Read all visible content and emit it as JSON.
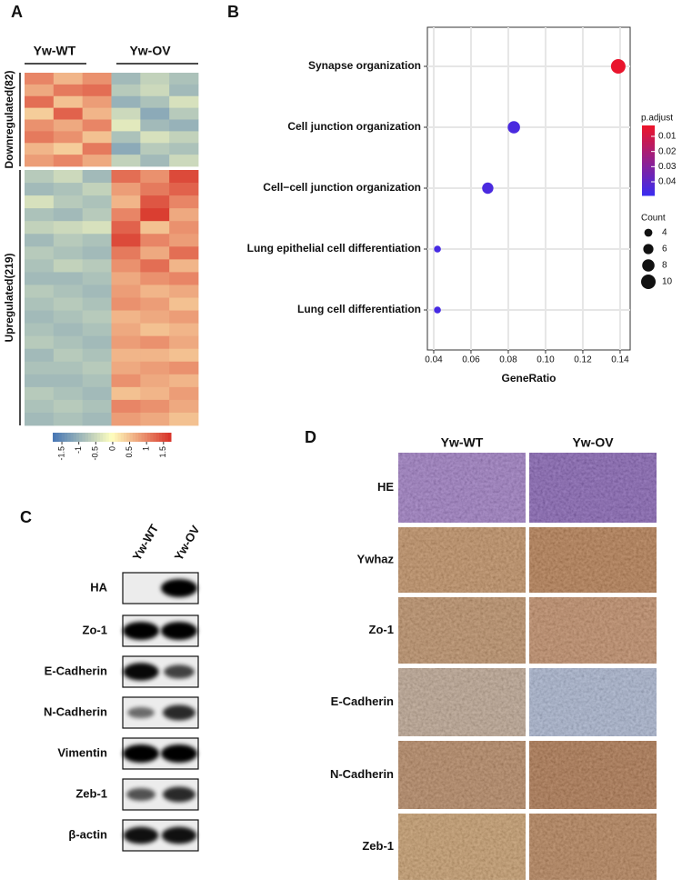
{
  "panels": [
    "A",
    "B",
    "C",
    "D"
  ],
  "heatmap": {
    "columns": [
      "Yw-WT",
      "Yw-OV"
    ],
    "row_groups": [
      "Downregulated(82)",
      "Upregulated(219)"
    ],
    "down": [
      [
        1.0,
        0.6,
        0.9,
        -0.9,
        -0.6,
        -0.8
      ],
      [
        0.7,
        1.1,
        1.2,
        -0.7,
        -0.5,
        -0.9
      ],
      [
        1.2,
        0.5,
        0.8,
        -1.0,
        -0.8,
        -0.4
      ],
      [
        0.4,
        1.3,
        0.6,
        -0.5,
        -1.1,
        -0.7
      ],
      [
        0.9,
        0.7,
        1.0,
        -0.3,
        -0.9,
        -1.0
      ],
      [
        1.1,
        0.9,
        0.5,
        -0.8,
        -0.4,
        -0.6
      ],
      [
        0.6,
        0.4,
        1.1,
        -1.1,
        -0.7,
        -0.8
      ],
      [
        0.8,
        1.0,
        0.7,
        -0.6,
        -0.9,
        -0.5
      ]
    ],
    "up": [
      [
        -0.7,
        -0.5,
        -0.9,
        1.2,
        0.9,
        1.5
      ],
      [
        -0.9,
        -0.8,
        -0.6,
        0.8,
        1.1,
        1.3
      ],
      [
        -0.4,
        -0.7,
        -0.8,
        0.6,
        1.4,
        1.0
      ],
      [
        -0.8,
        -0.9,
        -0.7,
        1.0,
        1.6,
        0.7
      ],
      [
        -0.6,
        -0.5,
        -0.4,
        1.3,
        0.5,
        0.9
      ],
      [
        -0.9,
        -0.7,
        -0.8,
        1.5,
        1.0,
        0.8
      ],
      [
        -0.7,
        -0.8,
        -0.9,
        1.1,
        0.7,
        1.2
      ],
      [
        -0.8,
        -0.6,
        -0.7,
        0.9,
        1.2,
        0.6
      ],
      [
        -0.9,
        -0.9,
        -0.8,
        0.7,
        0.9,
        1.0
      ],
      [
        -0.7,
        -0.8,
        -0.9,
        0.8,
        0.6,
        0.7
      ],
      [
        -0.8,
        -0.7,
        -0.8,
        0.9,
        0.8,
        0.5
      ],
      [
        -0.9,
        -0.8,
        -0.7,
        0.6,
        0.7,
        0.8
      ],
      [
        -0.8,
        -0.9,
        -0.8,
        0.7,
        0.5,
        0.6
      ],
      [
        -0.7,
        -0.8,
        -0.9,
        0.8,
        0.9,
        0.7
      ],
      [
        -0.9,
        -0.7,
        -0.8,
        0.6,
        0.6,
        0.5
      ],
      [
        -0.8,
        -0.8,
        -0.7,
        0.7,
        0.8,
        0.9
      ],
      [
        -0.9,
        -0.9,
        -0.8,
        0.9,
        0.7,
        0.6
      ],
      [
        -0.7,
        -0.8,
        -0.9,
        0.5,
        0.6,
        0.8
      ],
      [
        -0.8,
        -0.7,
        -0.8,
        1.0,
        0.9,
        0.7
      ],
      [
        -0.9,
        -0.8,
        -0.9,
        0.8,
        0.7,
        0.5
      ]
    ],
    "colors": [
      "#4575b4",
      "#ffffbf",
      "#d73027"
    ],
    "lim": [
      -1.77,
      1.72
    ],
    "ticks": [
      -1.5,
      -1,
      -0.5,
      0,
      0.5,
      1,
      1.5
    ]
  },
  "chart_data": {
    "type": "scatter",
    "categories": [
      "Synapse organization",
      "Cell junction organization",
      "Cell−cell junction organization",
      "Lung epithelial cell differentiation",
      "Lung cell differentiation"
    ],
    "values": [
      0.139,
      0.083,
      0.069,
      0.042,
      0.042
    ],
    "counts": [
      10,
      8,
      7,
      3,
      3
    ],
    "p_adjust": [
      0.004,
      0.045,
      0.045,
      0.046,
      0.046
    ],
    "x_label": "GeneRatio",
    "xlim": [
      0.0366,
      0.1454
    ],
    "xticks": [
      0.04,
      0.06,
      0.08,
      {
        "value": 0.1,
        "label": "0.10"
      },
      0.12,
      0.14
    ],
    "grid": true,
    "color_legend": {
      "title": "p.adjust",
      "colors": [
        "#ee1428",
        "#3a2cf0"
      ],
      "lim": [
        0.0028,
        0.049
      ],
      "ticks": [
        0.01,
        0.02,
        0.03,
        0.04
      ]
    },
    "size_legend": {
      "title": "Count",
      "ticks": [
        4,
        6,
        8,
        10
      ]
    }
  },
  "western": {
    "columns": [
      "Yw-WT",
      "Yw-OV"
    ],
    "rows": [
      "HA",
      "Zo-1",
      "E-Cadherin",
      "N-Cadherin",
      "Vimentin",
      "Zeb-1",
      "β-actin"
    ]
  },
  "ihc": {
    "columns": [
      "Yw-WT",
      "Yw-OV"
    ],
    "rows": [
      "HE",
      "Ywhaz",
      "Zo-1",
      "E-Cadherin",
      "N-Cadherin",
      "Zeb-1"
    ]
  }
}
